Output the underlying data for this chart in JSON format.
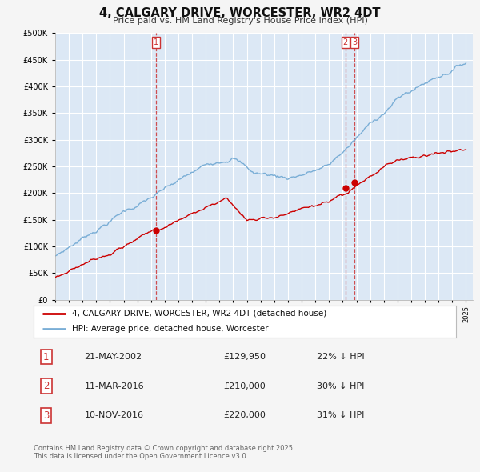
{
  "title": "4, CALGARY DRIVE, WORCESTER, WR2 4DT",
  "subtitle": "Price paid vs. HM Land Registry's House Price Index (HPI)",
  "ytick_vals": [
    0,
    50000,
    100000,
    150000,
    200000,
    250000,
    300000,
    350000,
    400000,
    450000,
    500000
  ],
  "ylim": [
    0,
    500000
  ],
  "sale_dates": [
    "2002-05-21",
    "2016-03-11",
    "2016-11-10"
  ],
  "sale_prices": [
    129950,
    210000,
    220000
  ],
  "sale_labels": [
    "1",
    "2",
    "3"
  ],
  "legend_entries": [
    "4, CALGARY DRIVE, WORCESTER, WR2 4DT (detached house)",
    "HPI: Average price, detached house, Worcester"
  ],
  "table_rows": [
    {
      "num": "1",
      "date": "21-MAY-2002",
      "price": "£129,950",
      "hpi": "22% ↓ HPI"
    },
    {
      "num": "2",
      "date": "11-MAR-2016",
      "price": "£210,000",
      "hpi": "30% ↓ HPI"
    },
    {
      "num": "3",
      "date": "10-NOV-2016",
      "price": "£220,000",
      "hpi": "31% ↓ HPI"
    }
  ],
  "footer": "Contains HM Land Registry data © Crown copyright and database right 2025.\nThis data is licensed under the Open Government Licence v3.0.",
  "line_color_red": "#cc0000",
  "line_color_blue": "#7aaed6",
  "vline_color": "#cc3333",
  "plot_bg_color": "#dce8f5",
  "fig_bg_color": "#f5f5f5"
}
